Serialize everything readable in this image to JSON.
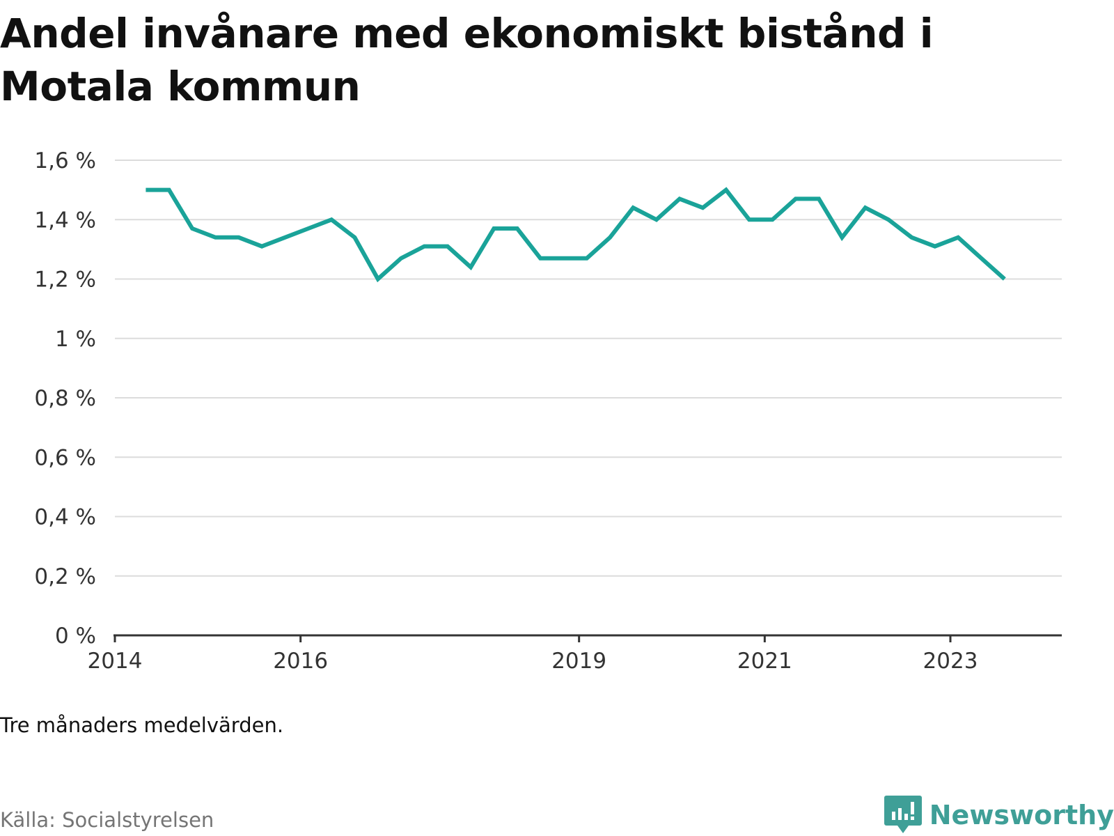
{
  "title": "Andel invånare med ekonomiskt bistånd i Motala kommun",
  "note": "Tre månaders medelvärden.",
  "source": "Källa: Socialstyrelsen",
  "brand": {
    "name": "Newsworthy",
    "icon": "newsworthy-logo-icon",
    "color": "#3f9f97"
  },
  "chart_data": {
    "type": "line",
    "x_axis_type": "date",
    "x_ticks": [
      "2014",
      "2016",
      "2019",
      "2021",
      "2023"
    ],
    "y_ticks": [
      "0 %",
      "0,2 %",
      "0,4 %",
      "0,6 %",
      "0,8 %",
      "1 %",
      "1,2 %",
      "1,4 %",
      "1,6 %"
    ],
    "ylim": [
      0,
      1.6
    ],
    "y_unit": "%",
    "grid": true,
    "line_color": "#1aa399",
    "series": [
      {
        "points": [
          {
            "x": "2014-05",
            "y": 1.5
          },
          {
            "x": "2014-08",
            "y": 1.5
          },
          {
            "x": "2014-11",
            "y": 1.37
          },
          {
            "x": "2015-02",
            "y": 1.34
          },
          {
            "x": "2015-05",
            "y": 1.34
          },
          {
            "x": "2015-08",
            "y": 1.31
          },
          {
            "x": "2015-11",
            "y": 1.34
          },
          {
            "x": "2016-02",
            "y": 1.37
          },
          {
            "x": "2016-05",
            "y": 1.4
          },
          {
            "x": "2016-08",
            "y": 1.34
          },
          {
            "x": "2016-11",
            "y": 1.2
          },
          {
            "x": "2017-02",
            "y": 1.27
          },
          {
            "x": "2017-05",
            "y": 1.31
          },
          {
            "x": "2017-08",
            "y": 1.31
          },
          {
            "x": "2017-11",
            "y": 1.24
          },
          {
            "x": "2018-02",
            "y": 1.37
          },
          {
            "x": "2018-05",
            "y": 1.37
          },
          {
            "x": "2018-08",
            "y": 1.27
          },
          {
            "x": "2018-11",
            "y": 1.27
          },
          {
            "x": "2019-02",
            "y": 1.27
          },
          {
            "x": "2019-05",
            "y": 1.34
          },
          {
            "x": "2019-08",
            "y": 1.44
          },
          {
            "x": "2019-11",
            "y": 1.4
          },
          {
            "x": "2020-02",
            "y": 1.47
          },
          {
            "x": "2020-05",
            "y": 1.44
          },
          {
            "x": "2020-08",
            "y": 1.5
          },
          {
            "x": "2020-11",
            "y": 1.4
          },
          {
            "x": "2021-02",
            "y": 1.4
          },
          {
            "x": "2021-05",
            "y": 1.47
          },
          {
            "x": "2021-08",
            "y": 1.47
          },
          {
            "x": "2021-11",
            "y": 1.34
          },
          {
            "x": "2022-02",
            "y": 1.44
          },
          {
            "x": "2022-05",
            "y": 1.4
          },
          {
            "x": "2022-08",
            "y": 1.34
          },
          {
            "x": "2022-11",
            "y": 1.31
          },
          {
            "x": "2023-02",
            "y": 1.34
          },
          {
            "x": "2023-05",
            "y": 1.27
          },
          {
            "x": "2023-08",
            "y": 1.2
          }
        ]
      }
    ]
  }
}
